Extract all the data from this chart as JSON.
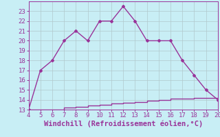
{
  "x": [
    4,
    5,
    6,
    7,
    8,
    9,
    10,
    11,
    12,
    13,
    14,
    15,
    16,
    17,
    18,
    19,
    20
  ],
  "y_upper": [
    13,
    17,
    18,
    20,
    21,
    20,
    22,
    22,
    23.5,
    22,
    20,
    20,
    20,
    18,
    16.5,
    15,
    14
  ],
  "y_lower": [
    13,
    13,
    13,
    13.2,
    13.3,
    13.4,
    13.5,
    13.6,
    13.7,
    13.8,
    13.9,
    14.0,
    14.1,
    14.1,
    14.2,
    14.2,
    14.2
  ],
  "line_color": "#993399",
  "bg_color": "#c8eef5",
  "grid_color": "#b0c8cc",
  "xlabel": "Windchill (Refroidissement éolien,°C)",
  "xlim": [
    4,
    20
  ],
  "ylim": [
    13,
    24
  ],
  "yticks": [
    13,
    14,
    15,
    16,
    17,
    18,
    19,
    20,
    21,
    22,
    23
  ],
  "xticks": [
    4,
    5,
    6,
    7,
    8,
    9,
    10,
    11,
    12,
    13,
    14,
    15,
    16,
    17,
    18,
    19,
    20
  ],
  "marker": "D",
  "marker_size": 2,
  "line_width": 1.0,
  "xlabel_fontsize": 7.5,
  "tick_fontsize": 6.5
}
